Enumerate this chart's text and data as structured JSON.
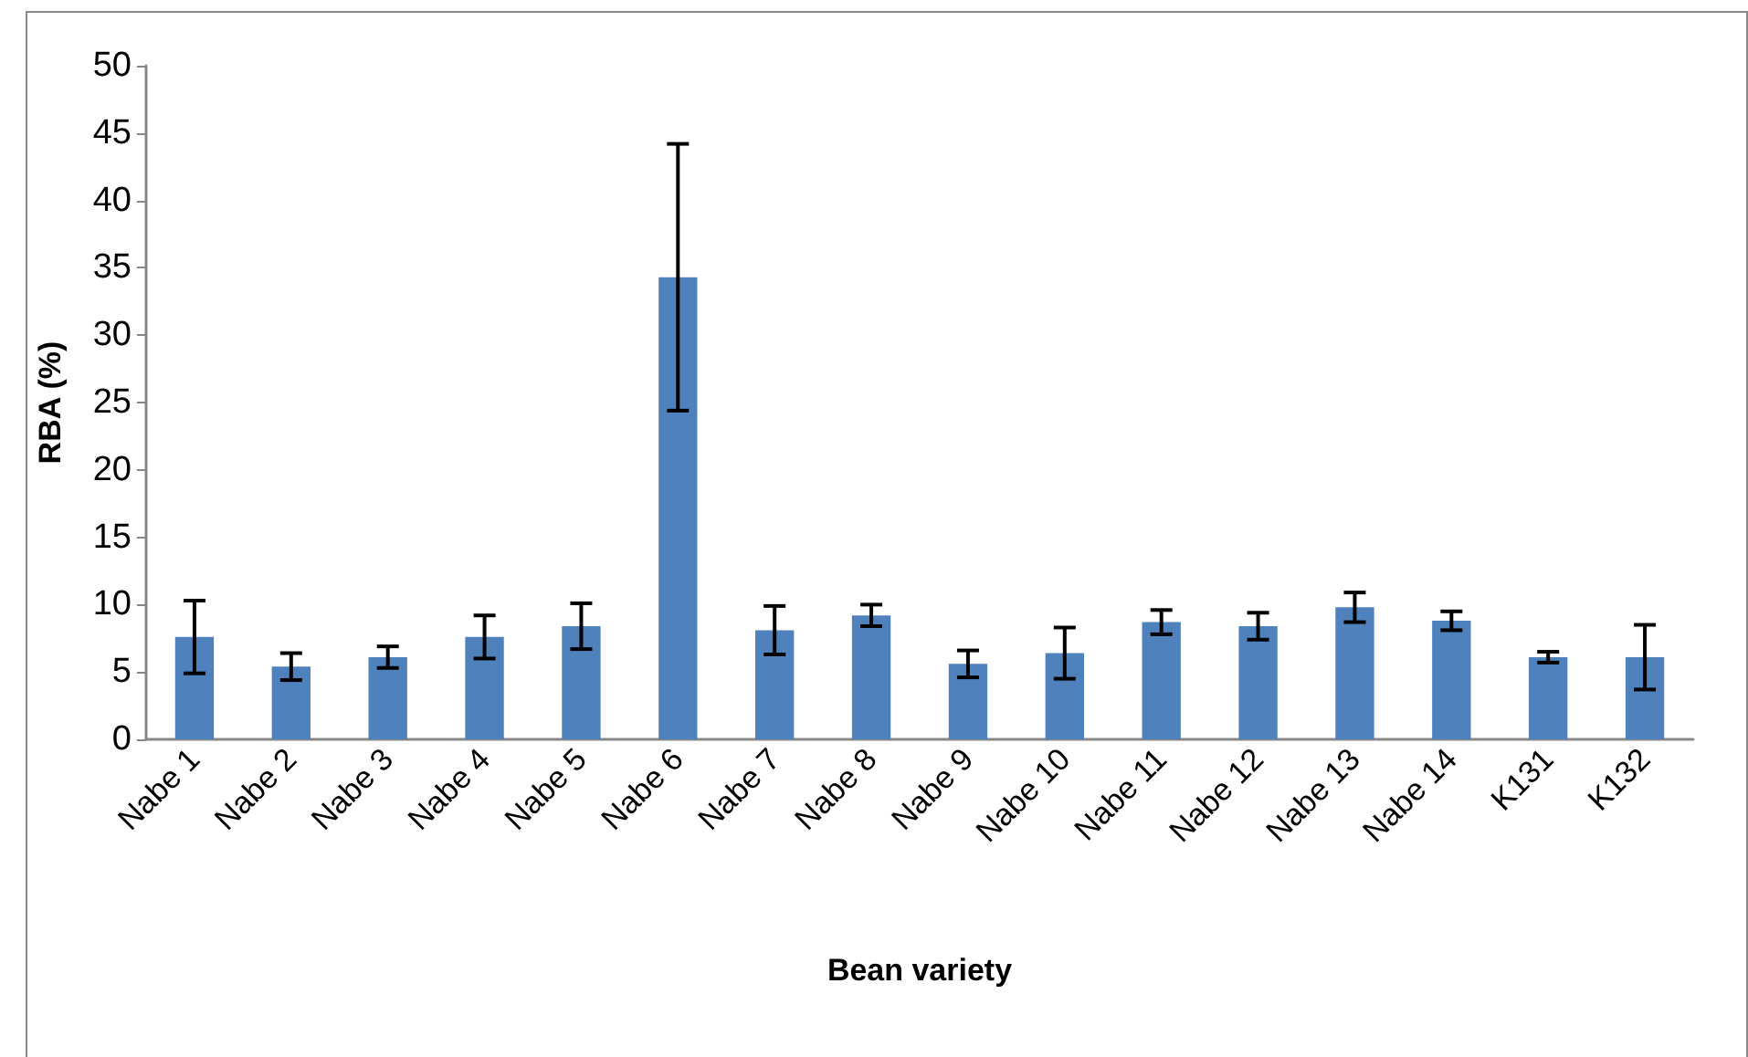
{
  "chart_data": {
    "type": "bar",
    "xlabel": "Bean variety",
    "ylabel": "RBA (%)",
    "categories": [
      "Nabe 1",
      "Nabe 2",
      "Nabe 3",
      "Nabe 4",
      "Nabe 5",
      "Nabe 6",
      "Nabe 7",
      "Nabe 8",
      "Nabe 9",
      "Nabe 10",
      "Nabe 11",
      "Nabe 12",
      "Nabe 13",
      "Nabe 14",
      "K131",
      "K132"
    ],
    "values": [
      7.6,
      5.4,
      6.1,
      7.6,
      8.4,
      34.3,
      8.1,
      9.2,
      5.6,
      6.4,
      8.7,
      8.4,
      9.8,
      8.8,
      6.1,
      6.1
    ],
    "errors": [
      2.7,
      1.0,
      0.8,
      1.6,
      1.7,
      9.9,
      1.8,
      0.8,
      1.0,
      1.9,
      0.9,
      1.0,
      1.1,
      0.7,
      0.4,
      2.4
    ],
    "color": "#4f81bd",
    "ylim": [
      0,
      50
    ],
    "yticks": [
      0,
      5,
      10,
      15,
      20,
      25,
      30,
      35,
      40,
      45,
      50
    ],
    "grid": false
  }
}
